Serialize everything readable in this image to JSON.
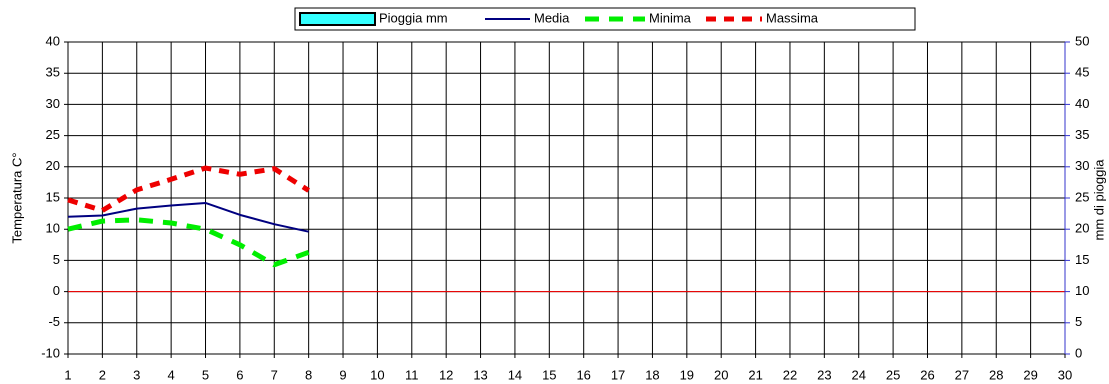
{
  "chart_data": {
    "type": "line",
    "x": [
      1,
      2,
      3,
      4,
      5,
      6,
      7,
      8
    ],
    "xlim": [
      1,
      30
    ],
    "xticks": [
      1,
      2,
      3,
      4,
      5,
      6,
      7,
      8,
      9,
      10,
      11,
      12,
      13,
      14,
      15,
      16,
      17,
      18,
      19,
      20,
      21,
      22,
      23,
      24,
      25,
      26,
      27,
      28,
      29,
      30
    ],
    "ylim": [
      -10,
      40
    ],
    "yticks": [
      -10,
      -5,
      0,
      5,
      10,
      15,
      20,
      25,
      30,
      35,
      40
    ],
    "y2lim": [
      0,
      50
    ],
    "y2ticks": [
      0,
      5,
      10,
      15,
      20,
      25,
      30,
      35,
      40,
      45,
      50
    ],
    "y_label": "Temperatura C°",
    "y2_label": "mm di pioggia",
    "grid": true,
    "zero_line_color": "#ff0000",
    "y2_color": "#3333cc",
    "series": [
      {
        "name": "Pioggia mm",
        "color": "#33ffff",
        "axis": "y2",
        "values": [
          null,
          null,
          null,
          null,
          null,
          null,
          null,
          null
        ]
      },
      {
        "name": "Media",
        "color": "#000080",
        "values": [
          12,
          12.2,
          13.3,
          13.8,
          14.2,
          12.3,
          10.8,
          9.6
        ]
      },
      {
        "name": "Minima",
        "color": "#00ee00",
        "values": [
          10,
          11.3,
          11.5,
          11,
          10,
          7.5,
          4.3,
          6.3
        ]
      },
      {
        "name": "Massima",
        "color": "#ee0000",
        "values": [
          14.7,
          13,
          16.3,
          18,
          19.8,
          18.8,
          19.7,
          16.2
        ]
      }
    ]
  }
}
